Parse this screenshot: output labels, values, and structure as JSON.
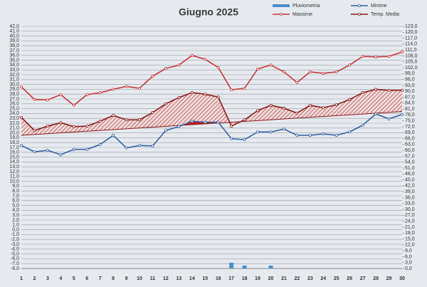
{
  "chart_data": {
    "type": "line",
    "title": "Giugno 2025",
    "categories": [
      "1",
      "2",
      "3",
      "4",
      "5",
      "6",
      "7",
      "8",
      "9",
      "10",
      "11",
      "12",
      "13",
      "14",
      "15",
      "16",
      "17",
      "18",
      "19",
      "20",
      "21",
      "22",
      "23",
      "24",
      "25",
      "26",
      "27",
      "28",
      "29",
      "30"
    ],
    "series": [
      {
        "name": "Pluviometria",
        "type": "bar",
        "axis": "y2",
        "color": "#4a8fd0",
        "values": [
          0,
          0,
          0,
          0,
          0,
          0,
          0,
          0,
          0,
          0,
          0,
          0,
          0,
          0,
          0,
          0,
          2.9,
          1.5,
          0,
          1.5,
          0,
          0,
          0,
          0,
          0,
          0,
          0,
          0,
          0,
          0
        ]
      },
      {
        "name": "Minime",
        "color": "#35609e",
        "values": [
          17.4,
          16.1,
          16.4,
          15.5,
          16.6,
          16.6,
          17.6,
          19.5,
          16.9,
          17.4,
          17.3,
          20.5,
          21.3,
          22.4,
          22.2,
          22.2,
          18.8,
          18.6,
          20.2,
          20.2,
          20.8,
          19.5,
          19.5,
          19.8,
          19.5,
          20.2,
          21.6,
          23.9,
          22.9,
          23.8
        ]
      },
      {
        "name": "Massime",
        "color": "#c0393b",
        "values": [
          29.5,
          26.9,
          26.8,
          27.9,
          25.7,
          27.9,
          28.3,
          29.0,
          29.6,
          29.2,
          31.7,
          33.3,
          34.0,
          36.0,
          35.2,
          33.5,
          28.9,
          29.2,
          33.2,
          34.0,
          32.6,
          30.4,
          32.6,
          32.3,
          32.6,
          34.0,
          35.8,
          35.7,
          35.8,
          36.7
        ]
      },
      {
        "name": "Temp. Media",
        "color": "#8b1a1a",
        "values": [
          23.2,
          20.5,
          21.4,
          22.1,
          21.3,
          21.4,
          22.4,
          23.6,
          22.7,
          22.7,
          24.2,
          26.0,
          27.3,
          28.3,
          28.0,
          27.4,
          21.4,
          22.7,
          24.6,
          25.7,
          25.1,
          24.1,
          25.7,
          25.2,
          25.8,
          26.9,
          28.3,
          29.0,
          28.8,
          28.8
        ]
      }
    ],
    "trend": [
      19.5,
      24.4
    ],
    "ylim": [
      -8,
      42
    ],
    "yticks": [
      {
        "value": -8,
        "label": "-8,0"
      },
      {
        "value": -7,
        "label": "-7,0"
      },
      {
        "value": -6,
        "label": "-6,0"
      },
      {
        "value": -5,
        "label": "-5,0"
      },
      {
        "value": -4,
        "label": "-4,0"
      },
      {
        "value": -3,
        "label": "-3,0"
      },
      {
        "value": -2,
        "label": "-2,0"
      },
      {
        "value": -1,
        "label": "-1,0"
      },
      {
        "value": 0,
        "label": "0,0"
      },
      {
        "value": 1,
        "label": "1,0"
      },
      {
        "value": 2,
        "label": "2,0"
      },
      {
        "value": 3,
        "label": "3,0"
      },
      {
        "value": 4,
        "label": "4,0"
      },
      {
        "value": 5,
        "label": "5,0"
      },
      {
        "value": 6,
        "label": "6,0"
      },
      {
        "value": 7,
        "label": "7,0"
      },
      {
        "value": 8,
        "label": "8,0"
      },
      {
        "value": 9,
        "label": "9,0"
      },
      {
        "value": 10,
        "label": "10,0"
      },
      {
        "value": 11,
        "label": "11,0"
      },
      {
        "value": 12,
        "label": "12,0"
      },
      {
        "value": 13,
        "label": "13,0"
      },
      {
        "value": 14,
        "label": "14,0"
      },
      {
        "value": 15,
        "label": "15,0"
      },
      {
        "value": 16,
        "label": "16,0"
      },
      {
        "value": 17,
        "label": "17,0"
      },
      {
        "value": 18,
        "label": "18,0"
      },
      {
        "value": 19,
        "label": "19,0"
      },
      {
        "value": 20,
        "label": "20,0"
      },
      {
        "value": 21,
        "label": "21,0"
      },
      {
        "value": 22,
        "label": "22,0"
      },
      {
        "value": 23,
        "label": "23,0"
      },
      {
        "value": 24,
        "label": "24,0"
      },
      {
        "value": 25,
        "label": "25,0"
      },
      {
        "value": 26,
        "label": "26,0"
      },
      {
        "value": 27,
        "label": "27,0"
      },
      {
        "value": 28,
        "label": "28,0"
      },
      {
        "value": 29,
        "label": "29,0"
      },
      {
        "value": 30,
        "label": "30,0"
      },
      {
        "value": 31,
        "label": "31,0"
      },
      {
        "value": 32,
        "label": "32,0"
      },
      {
        "value": 33,
        "label": "33,0"
      },
      {
        "value": 34,
        "label": "34,0"
      },
      {
        "value": 35,
        "label": "35,0"
      },
      {
        "value": 36,
        "label": "36,0"
      },
      {
        "value": 37,
        "label": "37,0"
      },
      {
        "value": 38,
        "label": "38,0"
      },
      {
        "value": 39,
        "label": "39,0"
      },
      {
        "value": 40,
        "label": "40,0"
      },
      {
        "value": 41,
        "label": "41,0"
      },
      {
        "value": 42,
        "label": "42,0"
      }
    ],
    "y2lim": [
      0,
      123
    ],
    "y2ticks": [
      {
        "value": 0,
        "label": "0,0"
      },
      {
        "value": 3,
        "label": "3,0"
      },
      {
        "value": 6,
        "label": "6,0"
      },
      {
        "value": 9,
        "label": "9,0"
      },
      {
        "value": 12,
        "label": "12,0"
      },
      {
        "value": 15,
        "label": "15,0"
      },
      {
        "value": 18,
        "label": "18,0"
      },
      {
        "value": 21,
        "label": "21,0"
      },
      {
        "value": 24,
        "label": "24,0"
      },
      {
        "value": 27,
        "label": "27,0"
      },
      {
        "value": 30,
        "label": "30,0"
      },
      {
        "value": 33,
        "label": "33,0"
      },
      {
        "value": 36,
        "label": "36,0"
      },
      {
        "value": 39,
        "label": "39,0"
      },
      {
        "value": 42,
        "label": "42,0"
      },
      {
        "value": 45,
        "label": "45,0"
      },
      {
        "value": 48,
        "label": "48,0"
      },
      {
        "value": 51,
        "label": "51,0"
      },
      {
        "value": 54,
        "label": "54,0"
      },
      {
        "value": 57,
        "label": "57,0"
      },
      {
        "value": 60,
        "label": "60,0"
      },
      {
        "value": 63,
        "label": "63,0"
      },
      {
        "value": 66,
        "label": "66,0"
      },
      {
        "value": 69,
        "label": "69,0"
      },
      {
        "value": 72,
        "label": "72,0"
      },
      {
        "value": 75,
        "label": "75,0"
      },
      {
        "value": 78,
        "label": "78,0"
      },
      {
        "value": 81,
        "label": "81,0"
      },
      {
        "value": 84,
        "label": "84,0"
      },
      {
        "value": 87,
        "label": "87,0"
      },
      {
        "value": 90,
        "label": "90,0"
      },
      {
        "value": 93,
        "label": "93,0"
      },
      {
        "value": 96,
        "label": "96,0"
      },
      {
        "value": 99,
        "label": "99,0"
      },
      {
        "value": 102,
        "label": "102,0"
      },
      {
        "value": 105,
        "label": "105,0"
      },
      {
        "value": 108,
        "label": "108,0"
      },
      {
        "value": 111,
        "label": "111,0"
      },
      {
        "value": 114,
        "label": "114,0"
      },
      {
        "value": 117,
        "label": "117,0"
      },
      {
        "value": 120,
        "label": "120,0"
      },
      {
        "value": 123,
        "label": "123,0"
      }
    ],
    "grid": true
  }
}
